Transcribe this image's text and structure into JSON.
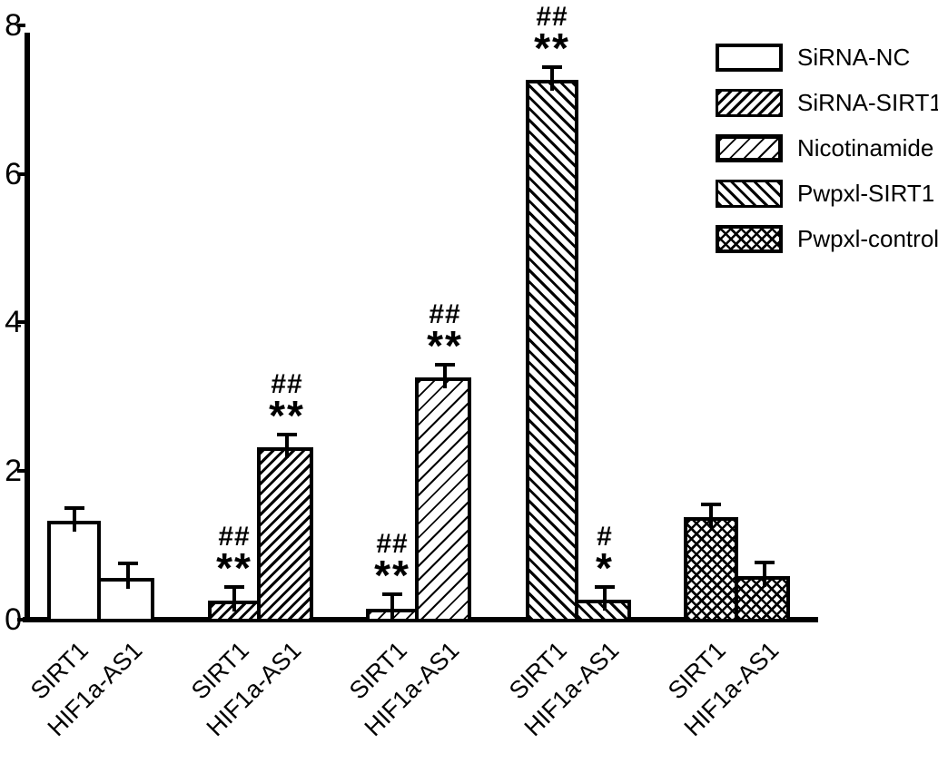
{
  "figure": {
    "background": "#ffffff",
    "ink_color": "#000000"
  },
  "chart_data": {
    "type": "bar",
    "title": "",
    "xlabel": "",
    "ylabel": "",
    "ylim": [
      0,
      8
    ],
    "yticks": [
      "0",
      "2",
      "4",
      "6",
      "8"
    ],
    "grid": false,
    "legend_position": "upper-right",
    "categories": [
      "SIRT1",
      "HIF1a-AS1"
    ],
    "series": [
      {
        "name": "SiRNA-NC",
        "pattern": "plain",
        "bars": [
          {
            "label": "SIRT1",
            "value": 1.33,
            "error": 0.2,
            "sig": []
          },
          {
            "label": "HIF1a-AS1",
            "value": 0.56,
            "error": 0.22,
            "sig": []
          }
        ]
      },
      {
        "name": "SiRNA-SIRT1",
        "pattern": "diag-up-dense",
        "bars": [
          {
            "label": "SIRT1",
            "value": 0.26,
            "error": 0.21,
            "sig": [
              "##",
              "**"
            ]
          },
          {
            "label": "HIF1a-AS1",
            "value": 2.32,
            "error": 0.19,
            "sig": [
              "##",
              "**"
            ]
          }
        ]
      },
      {
        "name": "Nicotinamide",
        "pattern": "diag-up-sparse",
        "bars": [
          {
            "label": "SIRT1",
            "value": 0.15,
            "error": 0.22,
            "sig": [
              "##",
              "**"
            ]
          },
          {
            "label": "HIF1a-AS1",
            "value": 3.26,
            "error": 0.2,
            "sig": [
              "##",
              "**"
            ]
          }
        ]
      },
      {
        "name": "Pwpxl-SIRT1",
        "pattern": "diag-down",
        "bars": [
          {
            "label": "SIRT1",
            "value": 7.27,
            "error": 0.19,
            "sig": [
              "##",
              "**"
            ]
          },
          {
            "label": "HIF1a-AS1",
            "value": 0.27,
            "error": 0.19,
            "sig": [
              "#",
              "*"
            ]
          }
        ]
      },
      {
        "name": "Pwpxl-control",
        "pattern": "crosshatch",
        "bars": [
          {
            "label": "SIRT1",
            "value": 1.38,
            "error": 0.2,
            "sig": []
          },
          {
            "label": "HIF1a-AS1",
            "value": 0.58,
            "error": 0.21,
            "sig": []
          }
        ]
      }
    ],
    "legend": [
      {
        "label": "SiRNA-NC",
        "pattern": "plain"
      },
      {
        "label": "SiRNA-SIRT1",
        "pattern": "diag-up-dense"
      },
      {
        "label": "Nicotinamide",
        "pattern": "diag-up-sparse"
      },
      {
        "label": "Pwpxl-SIRT1",
        "pattern": "diag-down"
      },
      {
        "label": "Pwpxl-control",
        "pattern": "crosshatch"
      }
    ]
  }
}
